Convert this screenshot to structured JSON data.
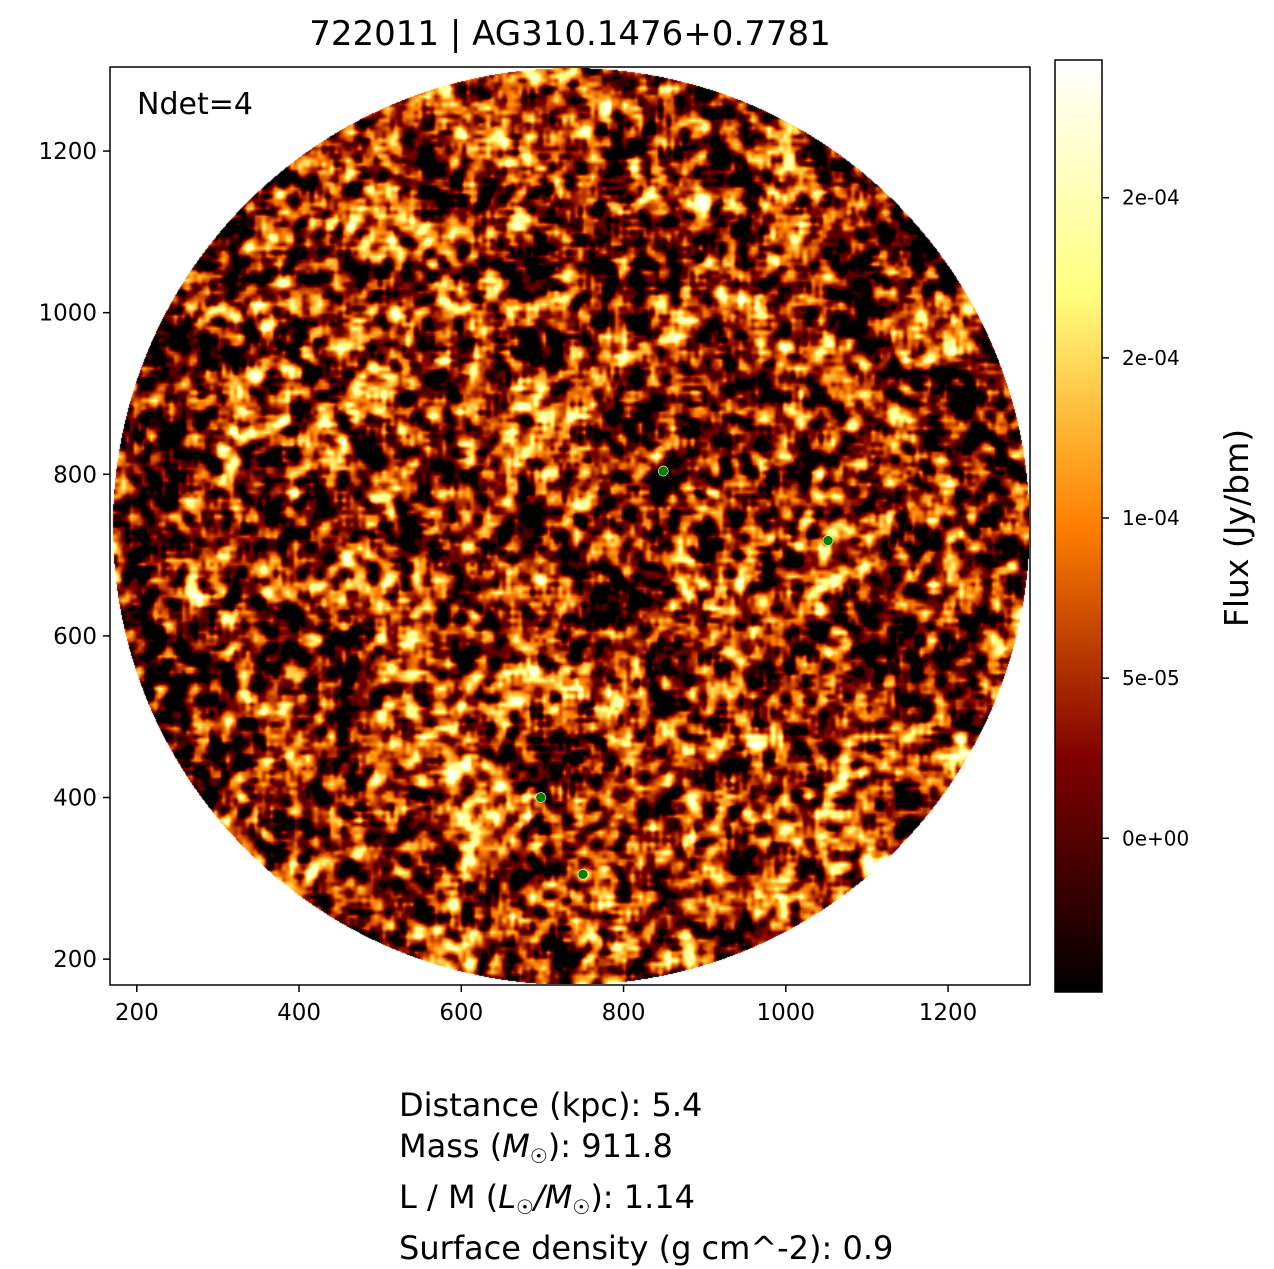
{
  "title": "722011 | AG310.1476+0.7781",
  "annotation": "Ndet=4",
  "chart_data": {
    "type": "heatmap",
    "title": "722011 | AG310.1476+0.7781",
    "colormap": "afmhot",
    "xlim": [
      167,
      1301
    ],
    "ylim": [
      168,
      1304
    ],
    "x_ticks": [
      "200",
      "400",
      "600",
      "800",
      "1000",
      "1200"
    ],
    "y_ticks": [
      "200",
      "400",
      "600",
      "800",
      "1000",
      "1200"
    ],
    "image_footprint": {
      "shape": "circle",
      "center": [
        735,
        736
      ],
      "radius": 565
    },
    "detections": {
      "color": "#008000",
      "points": [
        {
          "x": 849,
          "y": 804
        },
        {
          "x": 1052,
          "y": 718
        },
        {
          "x": 698,
          "y": 400
        },
        {
          "x": 750,
          "y": 305
        }
      ]
    },
    "colorbar": {
      "label": "Flux (Jy/bm)",
      "range": [
        -4.8e-05,
        0.000243
      ],
      "ticks": [
        {
          "value": 0.0002,
          "label": "2e-04"
        },
        {
          "value": 0.00015,
          "label": "2e-04"
        },
        {
          "value": 0.0001,
          "label": "1e-04"
        },
        {
          "value": 5e-05,
          "label": "5e-05"
        },
        {
          "value": 0,
          "label": "0e+00"
        }
      ]
    }
  },
  "info": {
    "distance": "Distance (kpc): 5.4",
    "mass_prefix": "Mass (",
    "mass_symbol": "M",
    "mass_suffix": "): 911.8",
    "lm_prefix": "L / M (",
    "lm_sym1": "L",
    "lm_sep": "/",
    "lm_sym2": "M",
    "lm_suffix": "): 1.14",
    "surface_density": "Surface density (g cm^-2): 0.9"
  }
}
